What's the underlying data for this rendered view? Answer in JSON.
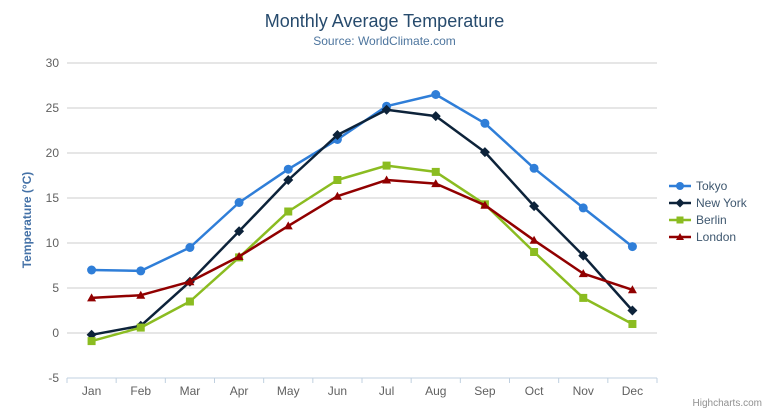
{
  "credit": "Highcharts.com",
  "colors": {
    "title": "#274b6d",
    "subtitle": "#4d759e",
    "axis_title": "#4572a7",
    "axis_label": "#606060",
    "axis_line": "#c0d0e0",
    "grid_line": "#cccccc",
    "legend_text": "#3e576f",
    "credit_text": "#909090"
  },
  "chart_data": {
    "type": "line",
    "title": "Monthly Average Temperature",
    "subtitle": "Source: WorldClimate.com",
    "categories": [
      "Jan",
      "Feb",
      "Mar",
      "Apr",
      "May",
      "Jun",
      "Jul",
      "Aug",
      "Sep",
      "Oct",
      "Nov",
      "Dec"
    ],
    "series": [
      {
        "name": "Tokyo",
        "color": "#2f7ed8",
        "marker": "circle",
        "values": [
          7.0,
          6.9,
          9.5,
          14.5,
          18.2,
          21.5,
          25.2,
          26.5,
          23.3,
          18.3,
          13.9,
          9.6
        ]
      },
      {
        "name": "New York",
        "color": "#0d233a",
        "marker": "diamond",
        "values": [
          -0.2,
          0.8,
          5.7,
          11.3,
          17.0,
          22.0,
          24.8,
          24.1,
          20.1,
          14.1,
          8.6,
          2.5
        ]
      },
      {
        "name": "Berlin",
        "color": "#8bbc21",
        "marker": "square",
        "values": [
          -0.9,
          0.6,
          3.5,
          8.4,
          13.5,
          17.0,
          18.6,
          17.9,
          14.3,
          9.0,
          3.9,
          1.0
        ]
      },
      {
        "name": "London",
        "color": "#910000",
        "marker": "triangle",
        "values": [
          3.9,
          4.2,
          5.7,
          8.5,
          11.9,
          15.2,
          17.0,
          16.6,
          14.2,
          10.3,
          6.6,
          4.8
        ]
      }
    ],
    "xlabel": "",
    "ylabel": "Temperature (°C)",
    "ylim": [
      -5,
      30
    ],
    "yticks": [
      -5,
      0,
      5,
      10,
      15,
      20,
      25,
      30
    ],
    "grid": true,
    "legend_position": "right"
  }
}
